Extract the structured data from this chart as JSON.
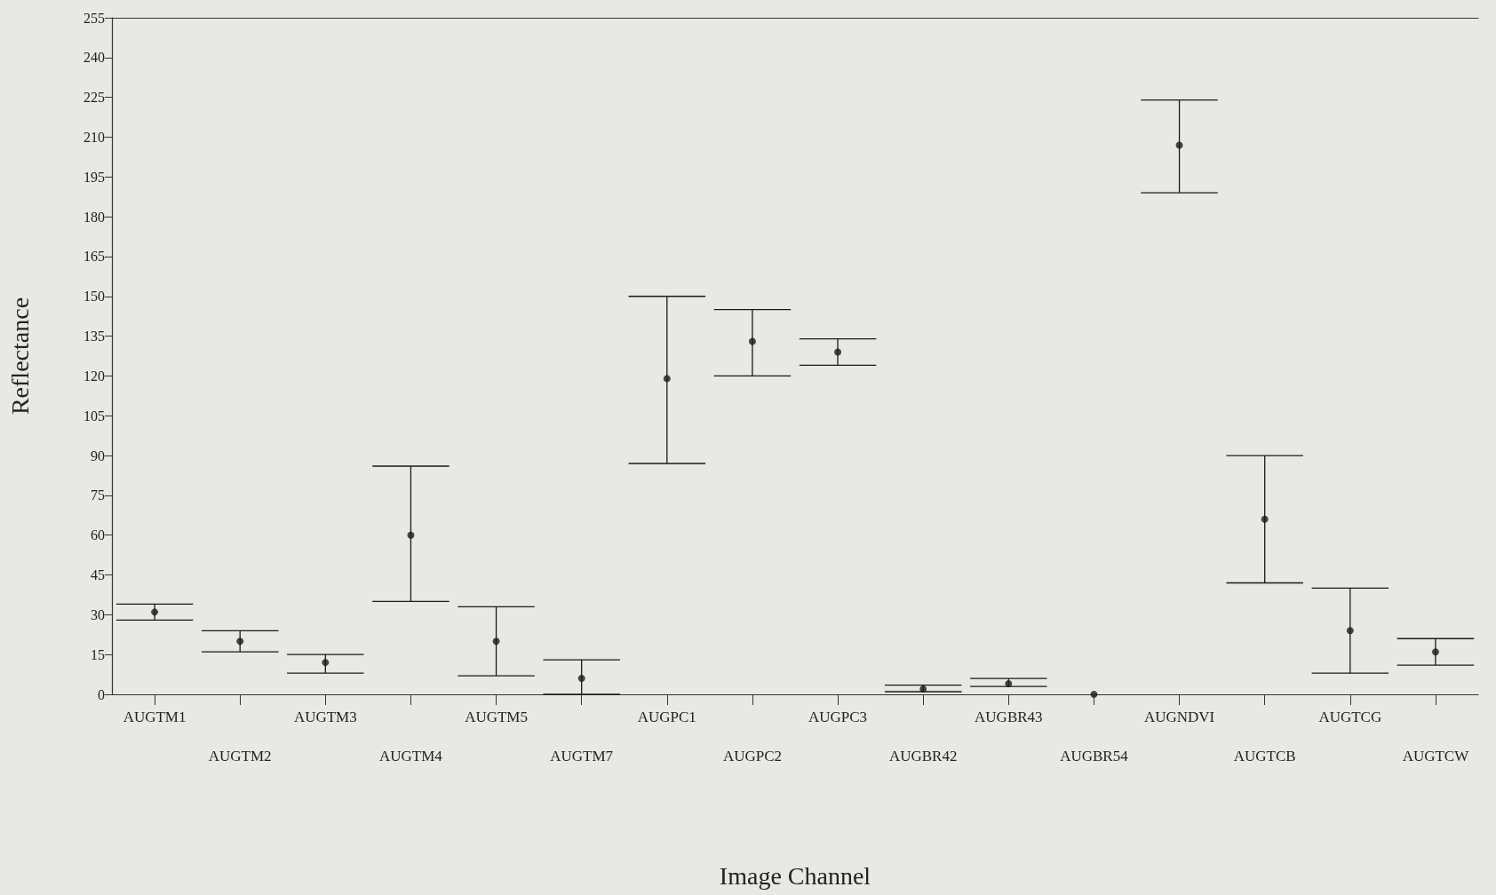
{
  "chart_data": {
    "type": "scatter",
    "xlabel": "Image Channel",
    "ylabel": "Reflectance",
    "categories": [
      "AUGTM1",
      "AUGTM2",
      "AUGTM3",
      "AUGTM4",
      "AUGTM5",
      "AUGTM7",
      "AUGPC1",
      "AUGPC2",
      "AUGPC3",
      "AUGBR42",
      "AUGBR43",
      "AUGBR54",
      "AUGNDVI",
      "AUGTCB",
      "AUGTCG",
      "AUGTCW"
    ],
    "values": [
      31,
      20,
      12,
      60,
      20,
      6,
      119,
      133,
      129,
      2,
      4,
      0,
      207,
      66,
      24,
      16
    ],
    "errors": [
      [
        28,
        34
      ],
      [
        16,
        24
      ],
      [
        8,
        15
      ],
      [
        35,
        86
      ],
      [
        7,
        33
      ],
      [
        0,
        13
      ],
      [
        87,
        150
      ],
      [
        120,
        145
      ],
      [
        124,
        134
      ],
      [
        1,
        3.5
      ],
      [
        3,
        6
      ],
      null,
      [
        189,
        224
      ],
      [
        42,
        90
      ],
      [
        8,
        40
      ],
      [
        11,
        21
      ]
    ],
    "color": "#1a1a1a",
    "marker": "circle",
    "grid": false,
    "ylim": [
      0,
      255
    ],
    "yticks": [
      0,
      15,
      30,
      45,
      60,
      75,
      90,
      105,
      120,
      135,
      150,
      165,
      180,
      195,
      210,
      225,
      240,
      255
    ]
  }
}
